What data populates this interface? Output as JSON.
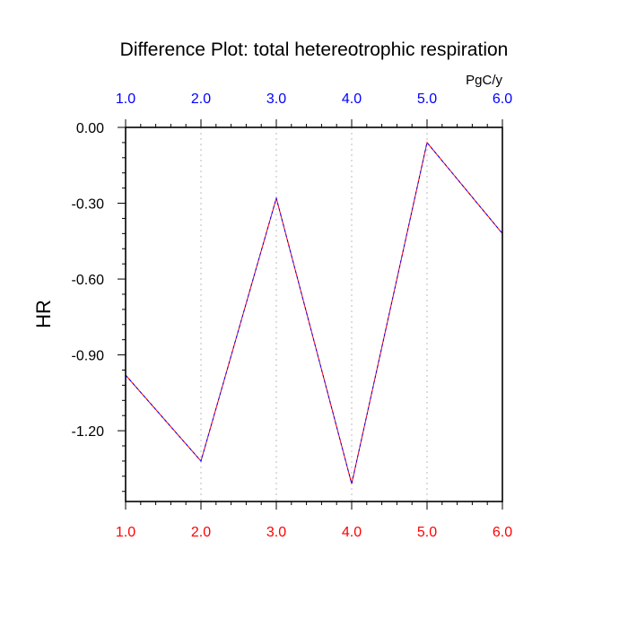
{
  "chart_data": {
    "type": "line",
    "title": "Difference Plot: total hetereotrophic respiration",
    "units": "PgC/y",
    "ylabel": "HR",
    "xlabel": "",
    "x": [
      1,
      2,
      3,
      4,
      5,
      6
    ],
    "xlim": [
      1,
      6
    ],
    "ylim": [
      -1.48,
      0
    ],
    "x_tick_values": [
      1,
      2,
      3,
      4,
      5,
      6
    ],
    "x_tick_labels_top": [
      "1.0",
      "2.0",
      "3.0",
      "4.0",
      "5.0",
      "6.0"
    ],
    "x_tick_labels_bottom": [
      "1.0",
      "2.0",
      "3.0",
      "4.0",
      "5.0",
      "6.0"
    ],
    "y_tick_values": [
      0,
      -0.3,
      -0.6,
      -0.9,
      -1.2
    ],
    "y_tick_labels": [
      "0.00",
      "-0.30",
      "-0.60",
      "-0.90",
      "-1.20"
    ],
    "y_minor_step": 0.06,
    "x_minor_step": 0.2,
    "grid": "vertical dotted lines at major x ticks",
    "series": [
      {
        "name": "difference-line-red",
        "color": "#ff0000",
        "style": "solid",
        "values": [
          -0.98,
          -1.32,
          -0.28,
          -1.41,
          -0.06,
          -0.42
        ]
      },
      {
        "name": "difference-line-blue",
        "color": "#0000ff",
        "style": "dashed",
        "values": [
          -0.98,
          -1.32,
          -0.28,
          -1.41,
          -0.06,
          -0.42
        ]
      }
    ],
    "top_tick_color": "#0000ff",
    "bottom_tick_color": "#ff0000",
    "legend": "none"
  }
}
